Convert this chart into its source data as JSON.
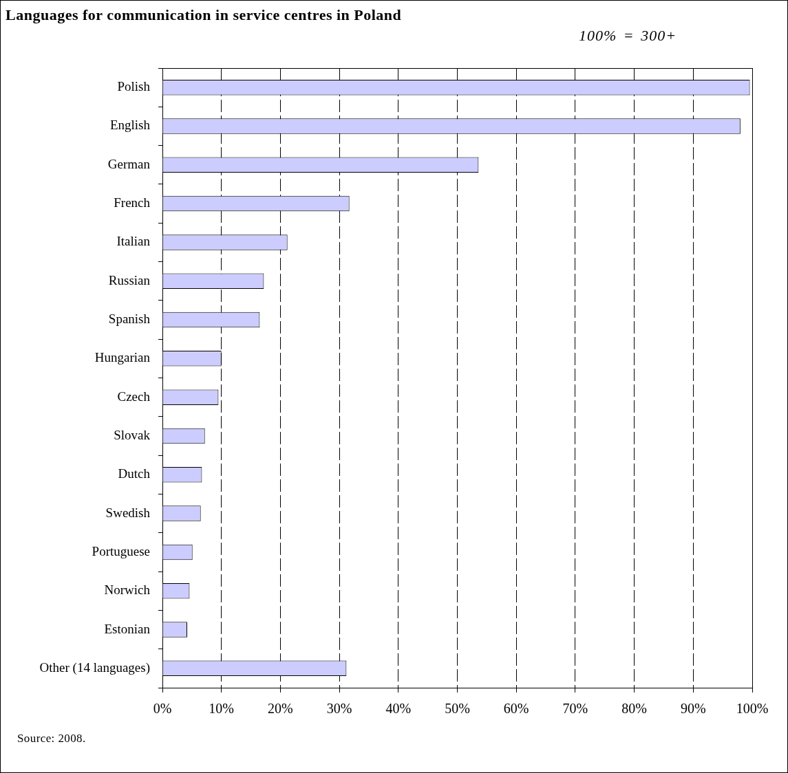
{
  "chart_data": {
    "type": "bar",
    "orientation": "horizontal",
    "title": "Languages for communication in service centres in Poland",
    "subtitle": "100% = 300+",
    "annotations": [
      "Source: 2008."
    ],
    "categories": [
      "Polish",
      "English",
      "German",
      "French",
      "Italian",
      "Russian",
      "Spanish",
      "Hungarian",
      "Czech",
      "Slovak",
      "Dutch",
      "Swedish",
      "Portuguese",
      "Norwich",
      "Estonian",
      "Other (14 languages)"
    ],
    "values": [
      99.6,
      98,
      53.6,
      31.7,
      21.2,
      17.2,
      16.5,
      10,
      9.5,
      7.2,
      6.7,
      6.5,
      5.1,
      4.6,
      4.2,
      31.2
    ],
    "color": "#ccccff",
    "xlim": [
      0,
      100
    ],
    "xticks": [
      {
        "value": 0,
        "label": "0%"
      },
      {
        "value": 10,
        "label": "10%"
      },
      {
        "value": 20,
        "label": "20%"
      },
      {
        "value": 30,
        "label": "30%"
      },
      {
        "value": 40,
        "label": "40%"
      },
      {
        "value": 50,
        "label": "50%"
      },
      {
        "value": 60,
        "label": "60%"
      },
      {
        "value": 70,
        "label": "70%"
      },
      {
        "value": 80,
        "label": "80%"
      },
      {
        "value": 90,
        "label": "90%"
      },
      {
        "value": 100,
        "label": "100%"
      }
    ],
    "grid": "x",
    "legend": false
  }
}
